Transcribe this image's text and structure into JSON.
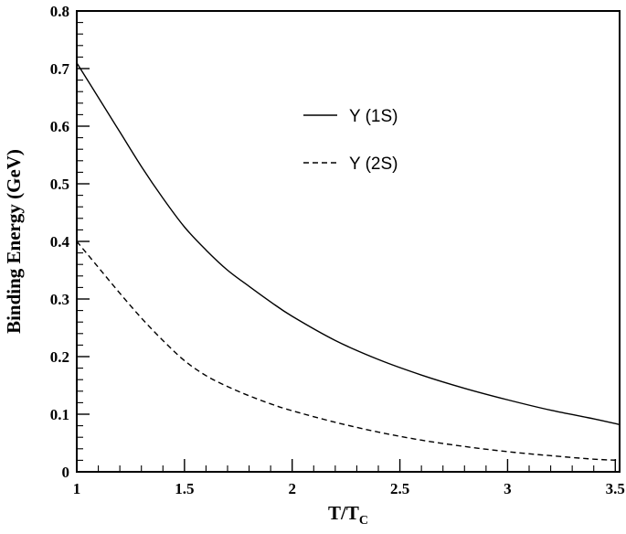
{
  "chart_data": {
    "type": "line",
    "xlabel": "T/T",
    "xlabel_sub": "C",
    "ylabel": "Binding Energy (GeV)",
    "xlim": [
      1,
      3.52
    ],
    "ylim": [
      0,
      0.8
    ],
    "x_ticks": [
      {
        "value": 1,
        "label": "1"
      },
      {
        "value": 1.5,
        "label": "1.5"
      },
      {
        "value": 2,
        "label": "2"
      },
      {
        "value": 2.5,
        "label": "2.5"
      },
      {
        "value": 3,
        "label": "3"
      },
      {
        "value": 3.5,
        "label": "3.5"
      }
    ],
    "y_ticks": [
      {
        "value": 0,
        "label": "0"
      },
      {
        "value": 0.1,
        "label": "0.1"
      },
      {
        "value": 0.2,
        "label": "0.2"
      },
      {
        "value": 0.3,
        "label": "0.3"
      },
      {
        "value": 0.4,
        "label": "0.4"
      },
      {
        "value": 0.5,
        "label": "0.5"
      },
      {
        "value": 0.6,
        "label": "0.6"
      },
      {
        "value": 0.7,
        "label": "0.7"
      },
      {
        "value": 0.8,
        "label": "0.8"
      }
    ],
    "grid": false,
    "legend_position": "top-right",
    "series": [
      {
        "name": "Υ (1S)",
        "style": "solid",
        "color": "#000000",
        "x": [
          1.0,
          1.1,
          1.2,
          1.3,
          1.4,
          1.5,
          1.6,
          1.7,
          1.8,
          1.9,
          2.0,
          2.2,
          2.4,
          2.6,
          2.8,
          3.0,
          3.2,
          3.4,
          3.52
        ],
        "y": [
          0.71,
          0.65,
          0.59,
          0.53,
          0.475,
          0.425,
          0.385,
          0.35,
          0.322,
          0.295,
          0.27,
          0.228,
          0.195,
          0.168,
          0.145,
          0.125,
          0.107,
          0.092,
          0.082
        ]
      },
      {
        "name": "Υ (2S)",
        "style": "dashed",
        "color": "#000000",
        "x": [
          1.0,
          1.1,
          1.2,
          1.3,
          1.4,
          1.5,
          1.6,
          1.7,
          1.8,
          1.9,
          2.0,
          2.2,
          2.4,
          2.6,
          2.8,
          3.0,
          3.2,
          3.4,
          3.52
        ],
        "y": [
          0.4,
          0.355,
          0.31,
          0.267,
          0.228,
          0.193,
          0.167,
          0.148,
          0.132,
          0.118,
          0.106,
          0.086,
          0.069,
          0.055,
          0.044,
          0.035,
          0.028,
          0.022,
          0.02
        ]
      }
    ]
  }
}
